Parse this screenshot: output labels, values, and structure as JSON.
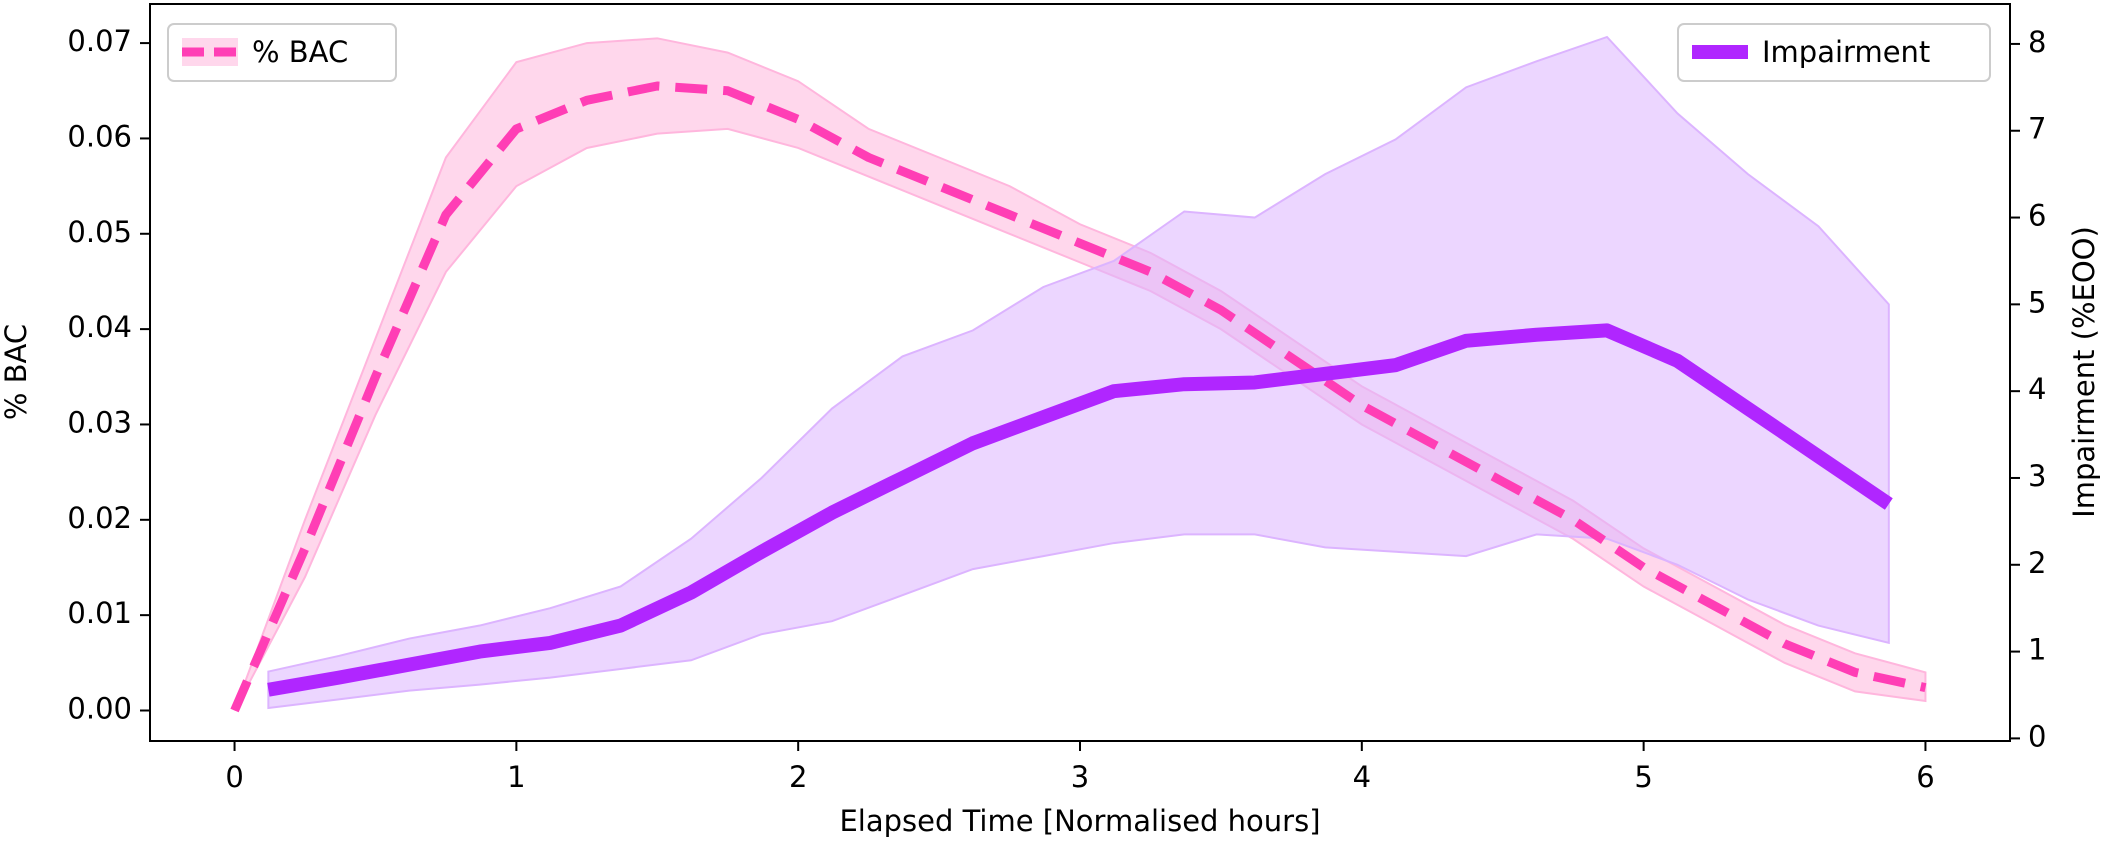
{
  "chart_data": {
    "type": "line_band",
    "xlabel": "Elapsed Time [Normalised hours]",
    "ylabel": "% BAC",
    "y2label": "Impairment (%EOO)",
    "xlim": [
      -0.3,
      6.3
    ],
    "xticks": [
      0,
      1,
      2,
      3,
      4,
      5,
      6
    ],
    "ylim": [
      -0.0032,
      0.0741
    ],
    "yticks": [
      {
        "value": 0,
        "label": "0.00"
      },
      0.01,
      0.02,
      0.03,
      0.04,
      0.05,
      0.06,
      0.07
    ],
    "y2lim": [
      -0.03,
      8.46
    ],
    "y2ticks": [
      0,
      1,
      2,
      3,
      4,
      5,
      6,
      7,
      8
    ],
    "series": [
      {
        "name": "% BAC",
        "color": "#ff3eb5",
        "band_color": "#ffb6dd",
        "dashed": true,
        "axis": "y",
        "legend": "upper left",
        "x": [
          0,
          0.25,
          0.5,
          0.75,
          1.0,
          1.25,
          1.5,
          1.75,
          2.0,
          2.25,
          2.5,
          2.75,
          3.0,
          3.25,
          3.5,
          3.75,
          4.0,
          4.25,
          4.5,
          4.75,
          5.0,
          5.25,
          5.5,
          5.75,
          6.0
        ],
        "values": [
          0,
          0.017,
          0.035,
          0.052,
          0.061,
          0.064,
          0.0655,
          0.065,
          0.062,
          0.058,
          0.055,
          0.052,
          0.049,
          0.046,
          0.042,
          0.037,
          0.032,
          0.028,
          0.024,
          0.02,
          0.015,
          0.011,
          0.007,
          0.004,
          0.0024
        ],
        "upper": [
          0,
          0.02,
          0.039,
          0.058,
          0.068,
          0.07,
          0.0705,
          0.069,
          0.066,
          0.061,
          0.058,
          0.055,
          0.051,
          0.048,
          0.044,
          0.039,
          0.034,
          0.03,
          0.026,
          0.022,
          0.017,
          0.013,
          0.009,
          0.006,
          0.004
        ],
        "lower": [
          0,
          0.014,
          0.031,
          0.046,
          0.055,
          0.059,
          0.0605,
          0.061,
          0.059,
          0.056,
          0.053,
          0.05,
          0.047,
          0.044,
          0.04,
          0.035,
          0.03,
          0.026,
          0.022,
          0.018,
          0.013,
          0.009,
          0.005,
          0.002,
          0.001
        ]
      },
      {
        "name": "Impairment",
        "color": "#b026ff",
        "band_color": "#dcb4ff",
        "dashed": false,
        "axis": "y2",
        "legend": "upper right",
        "x": [
          0.12,
          0.37,
          0.62,
          0.87,
          1.12,
          1.37,
          1.62,
          1.87,
          2.12,
          2.37,
          2.62,
          2.87,
          3.12,
          3.37,
          3.62,
          3.87,
          4.12,
          4.37,
          4.62,
          4.87,
          5.12,
          5.37,
          5.62,
          5.87
        ],
        "values": [
          0.56,
          0.7,
          0.85,
          1.0,
          1.1,
          1.3,
          1.68,
          2.15,
          2.6,
          3.0,
          3.4,
          3.7,
          4.0,
          4.08,
          4.1,
          4.2,
          4.3,
          4.58,
          4.65,
          4.7,
          4.35,
          3.8,
          3.25,
          2.7
        ],
        "upper": [
          0.77,
          0.95,
          1.15,
          1.3,
          1.5,
          1.75,
          2.3,
          3.0,
          3.8,
          4.4,
          4.7,
          5.2,
          5.5,
          6.07,
          6.0,
          6.5,
          6.9,
          7.5,
          7.8,
          8.08,
          7.2,
          6.5,
          5.9,
          5.0
        ],
        "lower": [
          0.35,
          0.45,
          0.55,
          0.62,
          0.7,
          0.8,
          0.9,
          1.2,
          1.35,
          1.65,
          1.95,
          2.1,
          2.25,
          2.35,
          2.35,
          2.2,
          2.15,
          2.1,
          2.35,
          2.3,
          2.0,
          1.6,
          1.3,
          1.1
        ]
      }
    ]
  }
}
